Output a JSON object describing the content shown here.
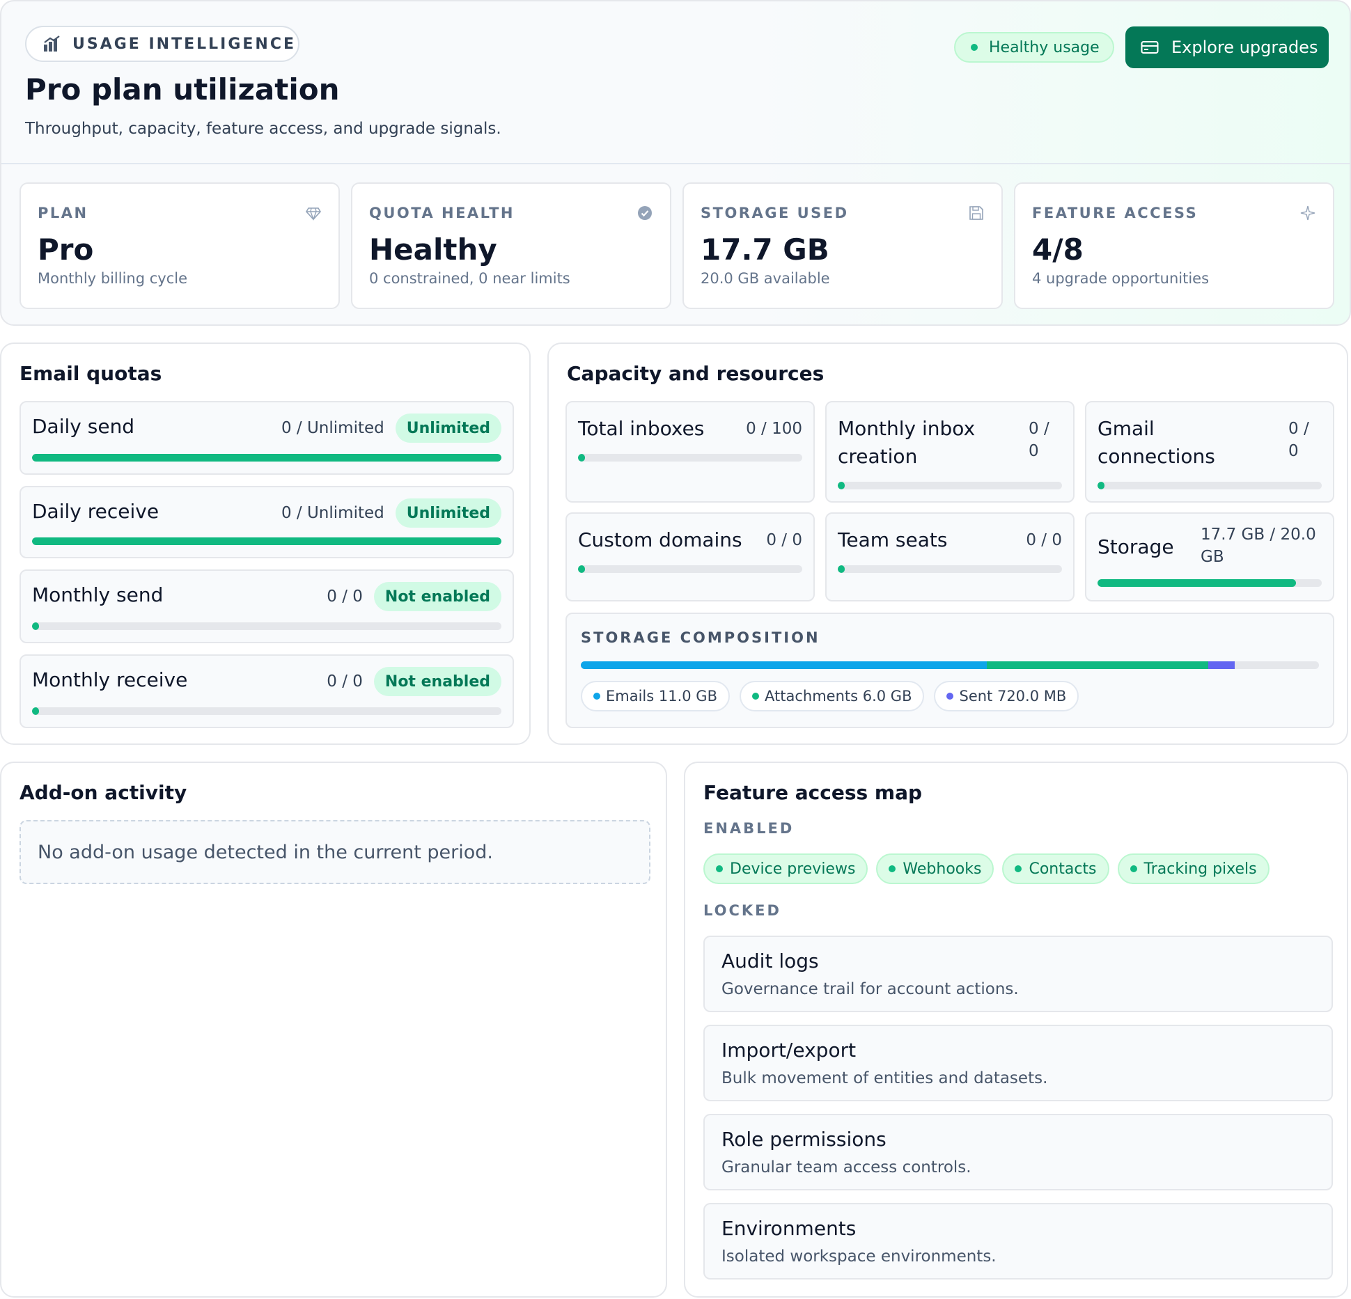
{
  "header": {
    "eyebrow": "USAGE INTELLIGENCE",
    "eyebrow_icon": "bar-chart-icon",
    "title": "Pro plan utilization",
    "subtitle": "Throughput, capacity, feature access, and upgrade signals.",
    "health_label": "Healthy usage",
    "cta_label": "Explore upgrades",
    "cta_icon": "card-icon"
  },
  "colors": {
    "accent": "#047857",
    "success": "#10b981",
    "success_soft": "#d1fae5",
    "track": "#e5e7eb",
    "emails": "#0ea5e9",
    "attachments": "#10b981",
    "sent": "#6366f1"
  },
  "stats": [
    {
      "label": "PLAN",
      "value": "Pro",
      "sub": "Monthly billing cycle",
      "icon": "gem-icon"
    },
    {
      "label": "QUOTA HEALTH",
      "value": "Healthy",
      "sub": "0 constrained, 0 near limits",
      "icon": "check-circle-icon"
    },
    {
      "label": "STORAGE USED",
      "value": "17.7 GB",
      "sub": "20.0 GB available",
      "icon": "save-icon"
    },
    {
      "label": "FEATURE ACCESS",
      "value": "4/8",
      "sub": "4 upgrade opportunities",
      "icon": "sparkle-icon"
    }
  ],
  "email_quotas": {
    "title": "Email quotas",
    "items": [
      {
        "name": "Daily send",
        "value": "0 / Unlimited",
        "badge": "Unlimited",
        "fill": 1.0
      },
      {
        "name": "Daily receive",
        "value": "0 / Unlimited",
        "badge": "Unlimited",
        "fill": 1.0
      },
      {
        "name": "Monthly send",
        "value": "0 / 0",
        "badge": "Not enabled",
        "fill": 0.0
      },
      {
        "name": "Monthly receive",
        "value": "0 / 0",
        "badge": "Not enabled",
        "fill": 0.0
      }
    ]
  },
  "capacity": {
    "title": "Capacity and resources",
    "items": [
      {
        "name": "Total inboxes",
        "value": "0 / 100",
        "fill": 0.0
      },
      {
        "name": "Monthly inbox creation",
        "value": "0 / 0",
        "fill": 0.0
      },
      {
        "name": "Gmail connections",
        "value": "0 / 0",
        "fill": 0.0
      },
      {
        "name": "Custom domains",
        "value": "0 / 0",
        "fill": 0.0
      },
      {
        "name": "Team seats",
        "value": "0 / 0",
        "fill": 0.0
      },
      {
        "name": "Storage",
        "value": "17.7 GB / 20.0 GB",
        "fill": 0.885
      }
    ],
    "composition": {
      "label": "STORAGE COMPOSITION",
      "total_capacity_gb": 20.0,
      "segments": [
        {
          "label": "Emails 11.0 GB",
          "gb": 11.0,
          "color": "#0ea5e9"
        },
        {
          "label": "Attachments 6.0 GB",
          "gb": 6.0,
          "color": "#10b981"
        },
        {
          "label": "Sent 720.0 MB",
          "gb": 0.72,
          "color": "#6366f1"
        }
      ]
    }
  },
  "addons": {
    "title": "Add-on activity",
    "empty_text": "No add-on usage detected in the current period."
  },
  "features": {
    "title": "Feature access map",
    "enabled_label": "ENABLED",
    "enabled": [
      "Device previews",
      "Webhooks",
      "Contacts",
      "Tracking pixels"
    ],
    "locked_label": "LOCKED",
    "locked": [
      {
        "title": "Audit logs",
        "desc": "Governance trail for account actions."
      },
      {
        "title": "Import/export",
        "desc": "Bulk movement of entities and datasets."
      },
      {
        "title": "Role permissions",
        "desc": "Granular team access controls."
      },
      {
        "title": "Environments",
        "desc": "Isolated workspace environments."
      }
    ]
  }
}
